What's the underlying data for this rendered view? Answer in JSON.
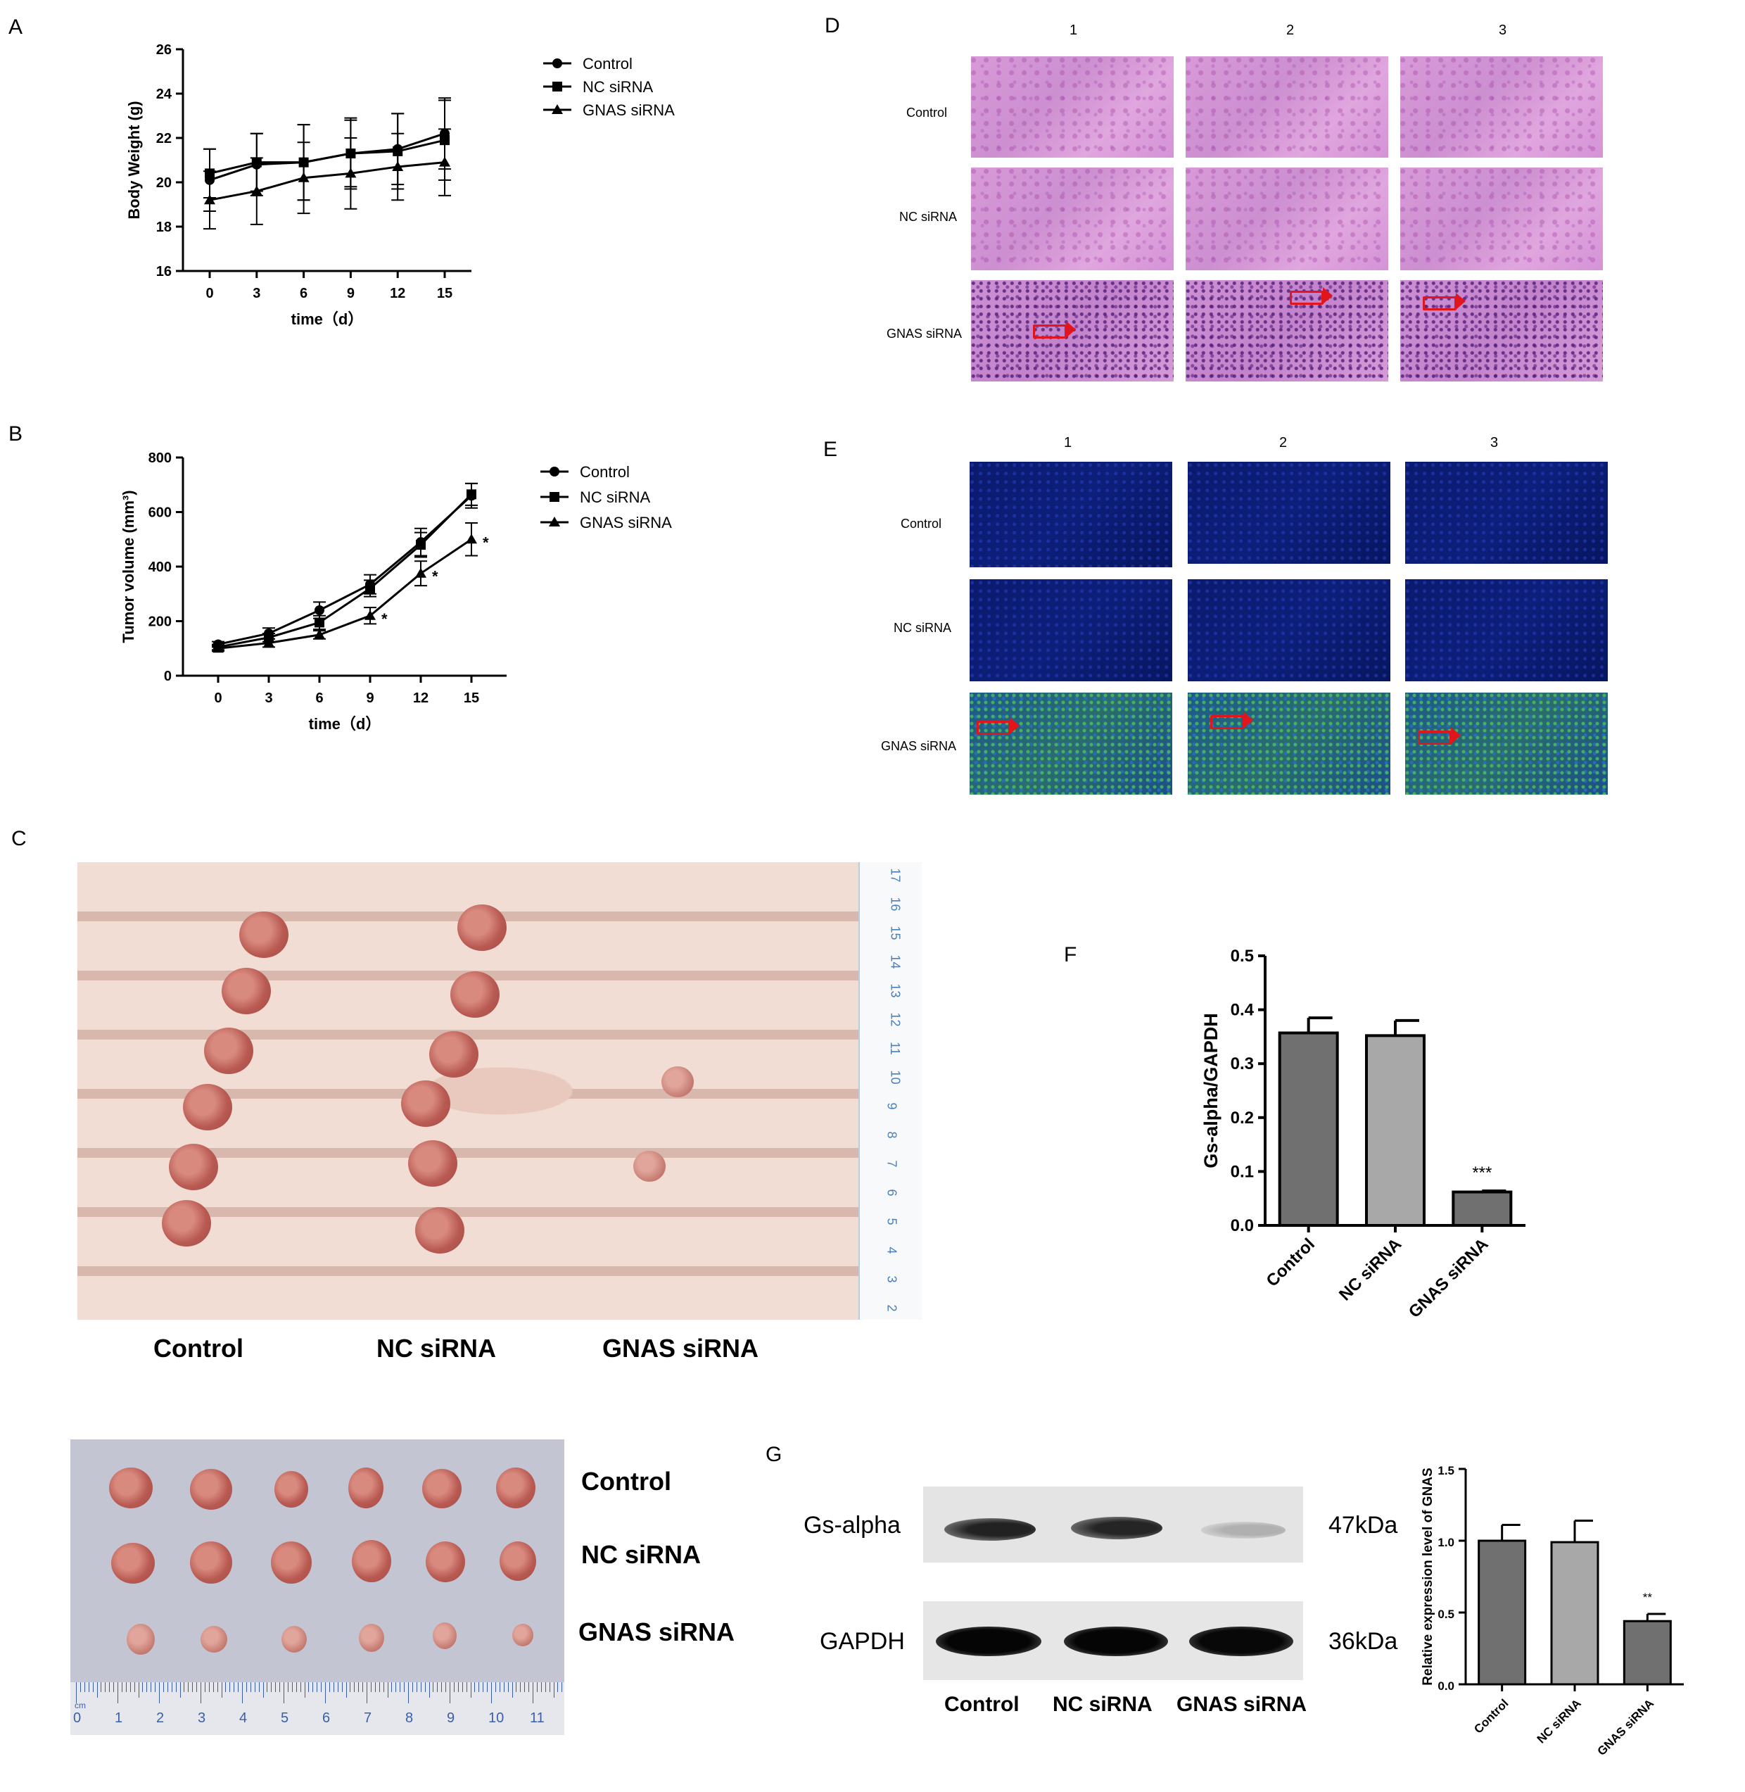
{
  "panels": {
    "A": "A",
    "B": "B",
    "C": "C",
    "D": "D",
    "E": "E",
    "F": "F",
    "G": "G"
  },
  "panel_a": {
    "chart_data": {
      "type": "line",
      "x": [
        0,
        3,
        6,
        9,
        12,
        15
      ],
      "xlabel": "time（d）",
      "ylabel": "Body Weight (g)",
      "ylim": [
        16,
        26
      ],
      "yticks": [
        "16",
        "18",
        "20",
        "22",
        "24",
        "26"
      ],
      "xticks": [
        "0",
        "3",
        "6",
        "9",
        "12",
        "15"
      ],
      "legend": "top-right",
      "series": [
        {
          "name": "Control",
          "marker": "circle",
          "values": [
            20.1,
            20.8,
            20.9,
            21.3,
            21.5,
            22.2
          ],
          "err": [
            1.4,
            1.4,
            1.7,
            1.6,
            1.6,
            1.6
          ]
        },
        {
          "name": "NC siRNA",
          "marker": "square",
          "values": [
            20.4,
            20.9,
            20.9,
            21.3,
            21.4,
            21.9
          ],
          "err": [
            1.1,
            1.3,
            1.7,
            1.5,
            1.7,
            1.8
          ]
        },
        {
          "name": "GNAS siRNA",
          "marker": "triangle",
          "values": [
            19.2,
            19.6,
            20.2,
            20.4,
            20.7,
            20.9
          ],
          "err": [
            1.3,
            1.5,
            1.6,
            1.6,
            1.5,
            1.5
          ]
        }
      ]
    }
  },
  "panel_b": {
    "chart_data": {
      "type": "line",
      "x": [
        0,
        3,
        6,
        9,
        12,
        15
      ],
      "xlabel": "time（d）",
      "ylabel": "Tumor volume (mm³)",
      "ylim": [
        0,
        800
      ],
      "yticks": [
        "0",
        "200",
        "400",
        "600",
        "800"
      ],
      "xticks": [
        "0",
        "3",
        "6",
        "9",
        "12",
        "15"
      ],
      "legend": "top-right",
      "series": [
        {
          "name": "Control",
          "marker": "circle",
          "values": [
            115,
            155,
            240,
            335,
            490,
            660
          ],
          "err": [
            10,
            20,
            30,
            35,
            50,
            45
          ]
        },
        {
          "name": "NC siRNA",
          "marker": "square",
          "values": [
            105,
            140,
            195,
            320,
            480,
            665
          ],
          "err": [
            10,
            15,
            25,
            30,
            45,
            40
          ]
        },
        {
          "name": "GNAS siRNA",
          "marker": "triangle",
          "values": [
            100,
            120,
            150,
            220,
            375,
            500
          ],
          "err": [
            10,
            15,
            15,
            30,
            45,
            60
          ]
        }
      ],
      "annotations": [
        {
          "x": 9,
          "text": "*"
        },
        {
          "x": 12,
          "text": "*"
        },
        {
          "x": 15,
          "text": "*"
        }
      ]
    }
  },
  "panel_c": {
    "groups": [
      "Control",
      "NC siRNA",
      "GNAS siRNA"
    ],
    "tumor_rows": [
      "Control",
      "NC siRNA",
      "GNAS siRNA"
    ],
    "ruler_top": [
      "17",
      "16",
      "15",
      "14",
      "13",
      "12",
      "11",
      "10",
      "9",
      "8",
      "7",
      "6",
      "5",
      "4",
      "3",
      "2"
    ],
    "ruler_bottom": [
      "0",
      "1",
      "2",
      "3",
      "4",
      "5",
      "6",
      "7",
      "8",
      "9",
      "10",
      "11"
    ],
    "ruler_unit": "cm"
  },
  "panel_d": {
    "cols": [
      "1",
      "2",
      "3"
    ],
    "rows": [
      "Control",
      "NC siRNA",
      "GNAS siRNA"
    ]
  },
  "panel_e": {
    "cols": [
      "1",
      "2",
      "3"
    ],
    "rows": [
      "Control",
      "NC siRNA",
      "GNAS siRNA"
    ]
  },
  "panel_f": {
    "chart_data": {
      "type": "bar",
      "categories": [
        "Control",
        "NC siRNA",
        "GNAS siRNA"
      ],
      "values": [
        0.357,
        0.352,
        0.062
      ],
      "err": [
        0.028,
        0.028,
        0.002
      ],
      "ylabel": "Gs-alpha/GAPDH",
      "ylim": [
        0,
        0.5
      ],
      "yticks": [
        "0.0",
        "0.1",
        "0.2",
        "0.3",
        "0.4",
        "0.5"
      ],
      "annotations": [
        {
          "category": "GNAS siRNA",
          "text": "***"
        }
      ],
      "colors": [
        "#707070",
        "#a8a8a8",
        "#707070"
      ]
    }
  },
  "panel_g": {
    "blot_rows": [
      {
        "label": "Gs-alpha",
        "size": "47kDa"
      },
      {
        "label": "GAPDH",
        "size": "36kDa"
      }
    ],
    "lanes": [
      "Control",
      "NC siRNA",
      "GNAS siRNA"
    ],
    "chart_data": {
      "type": "bar",
      "categories": [
        "Control",
        "NC siRNA",
        "GNAS siRNA"
      ],
      "values": [
        1.0,
        0.99,
        0.44
      ],
      "err": [
        0.11,
        0.15,
        0.05
      ],
      "ylabel": "Relative expression level of GNAS",
      "ylim": [
        0,
        1.5
      ],
      "yticks": [
        "0.0",
        "0.5",
        "1.0",
        "1.5"
      ],
      "annotations": [
        {
          "category": "GNAS siRNA",
          "text": "**"
        }
      ],
      "colors": [
        "#707070",
        "#a8a8a8",
        "#707070"
      ]
    }
  }
}
